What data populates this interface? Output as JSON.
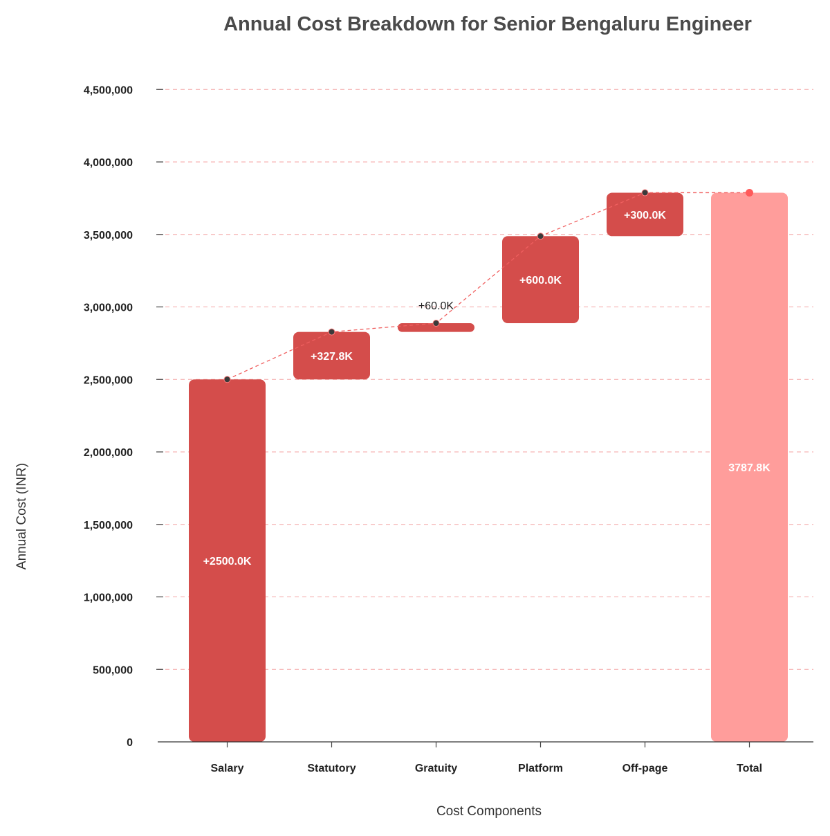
{
  "chart_data": {
    "type": "bar",
    "subtype": "waterfall",
    "title": "Annual Cost Breakdown for Senior Bengaluru Engineer",
    "xlabel": "Cost Components",
    "ylabel": "Annual Cost (INR)",
    "categories": [
      "Salary",
      "Statutory",
      "Gratuity",
      "Platform",
      "Off-page",
      "Total"
    ],
    "values": [
      2500000,
      327800,
      60000,
      600000,
      300000,
      3787800
    ],
    "bar_labels": [
      "+2500.0K",
      "+327.8K",
      "+60.0K",
      "+600.0K",
      "+300.0K",
      "3787.8K"
    ],
    "is_total": [
      false,
      false,
      false,
      false,
      false,
      true
    ],
    "ylim": [
      0,
      4700000
    ],
    "yticks": [
      0,
      500000,
      1000000,
      1500000,
      2000000,
      2500000,
      3000000,
      3500000,
      4000000,
      4500000
    ],
    "ytick_labels": [
      "0",
      "500,000",
      "1,000,000",
      "1,500,000",
      "2,000,000",
      "2,500,000",
      "3,000,000",
      "3,500,000",
      "4,000,000",
      "4,500,000"
    ],
    "grid": "horizontal dashed",
    "colors": {
      "increase": "#d44d4b",
      "total": "#ff9d9b",
      "grid": "#f4a3a3",
      "connector": "#f06060",
      "marker": "#3a3a3a",
      "total_marker": "#ff5a5a"
    }
  }
}
